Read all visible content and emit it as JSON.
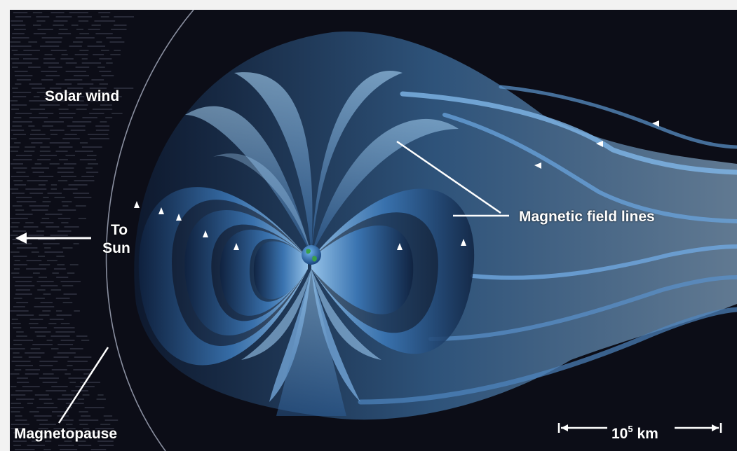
{
  "labels": {
    "solar_wind": "Solar wind",
    "to": "To",
    "sun": "Sun",
    "field_lines": "Magnetic field lines",
    "magnetopause": "Magnetopause",
    "scale_base": "10",
    "scale_exp": "5",
    "scale_unit": "km"
  },
  "colors": {
    "background": "#0c0d17",
    "field_light": "#8fc3f2",
    "field_mid": "#3b78b8",
    "field_dark": "#0f2240",
    "earth_ocean": "#1e5fa8",
    "earth_land": "#3aa04a",
    "annotation": "#ffffff"
  },
  "icons": [
    "earth-icon",
    "sun-direction-arrow-icon",
    "field-direction-arrow-icon",
    "scale-bar-icon"
  ]
}
